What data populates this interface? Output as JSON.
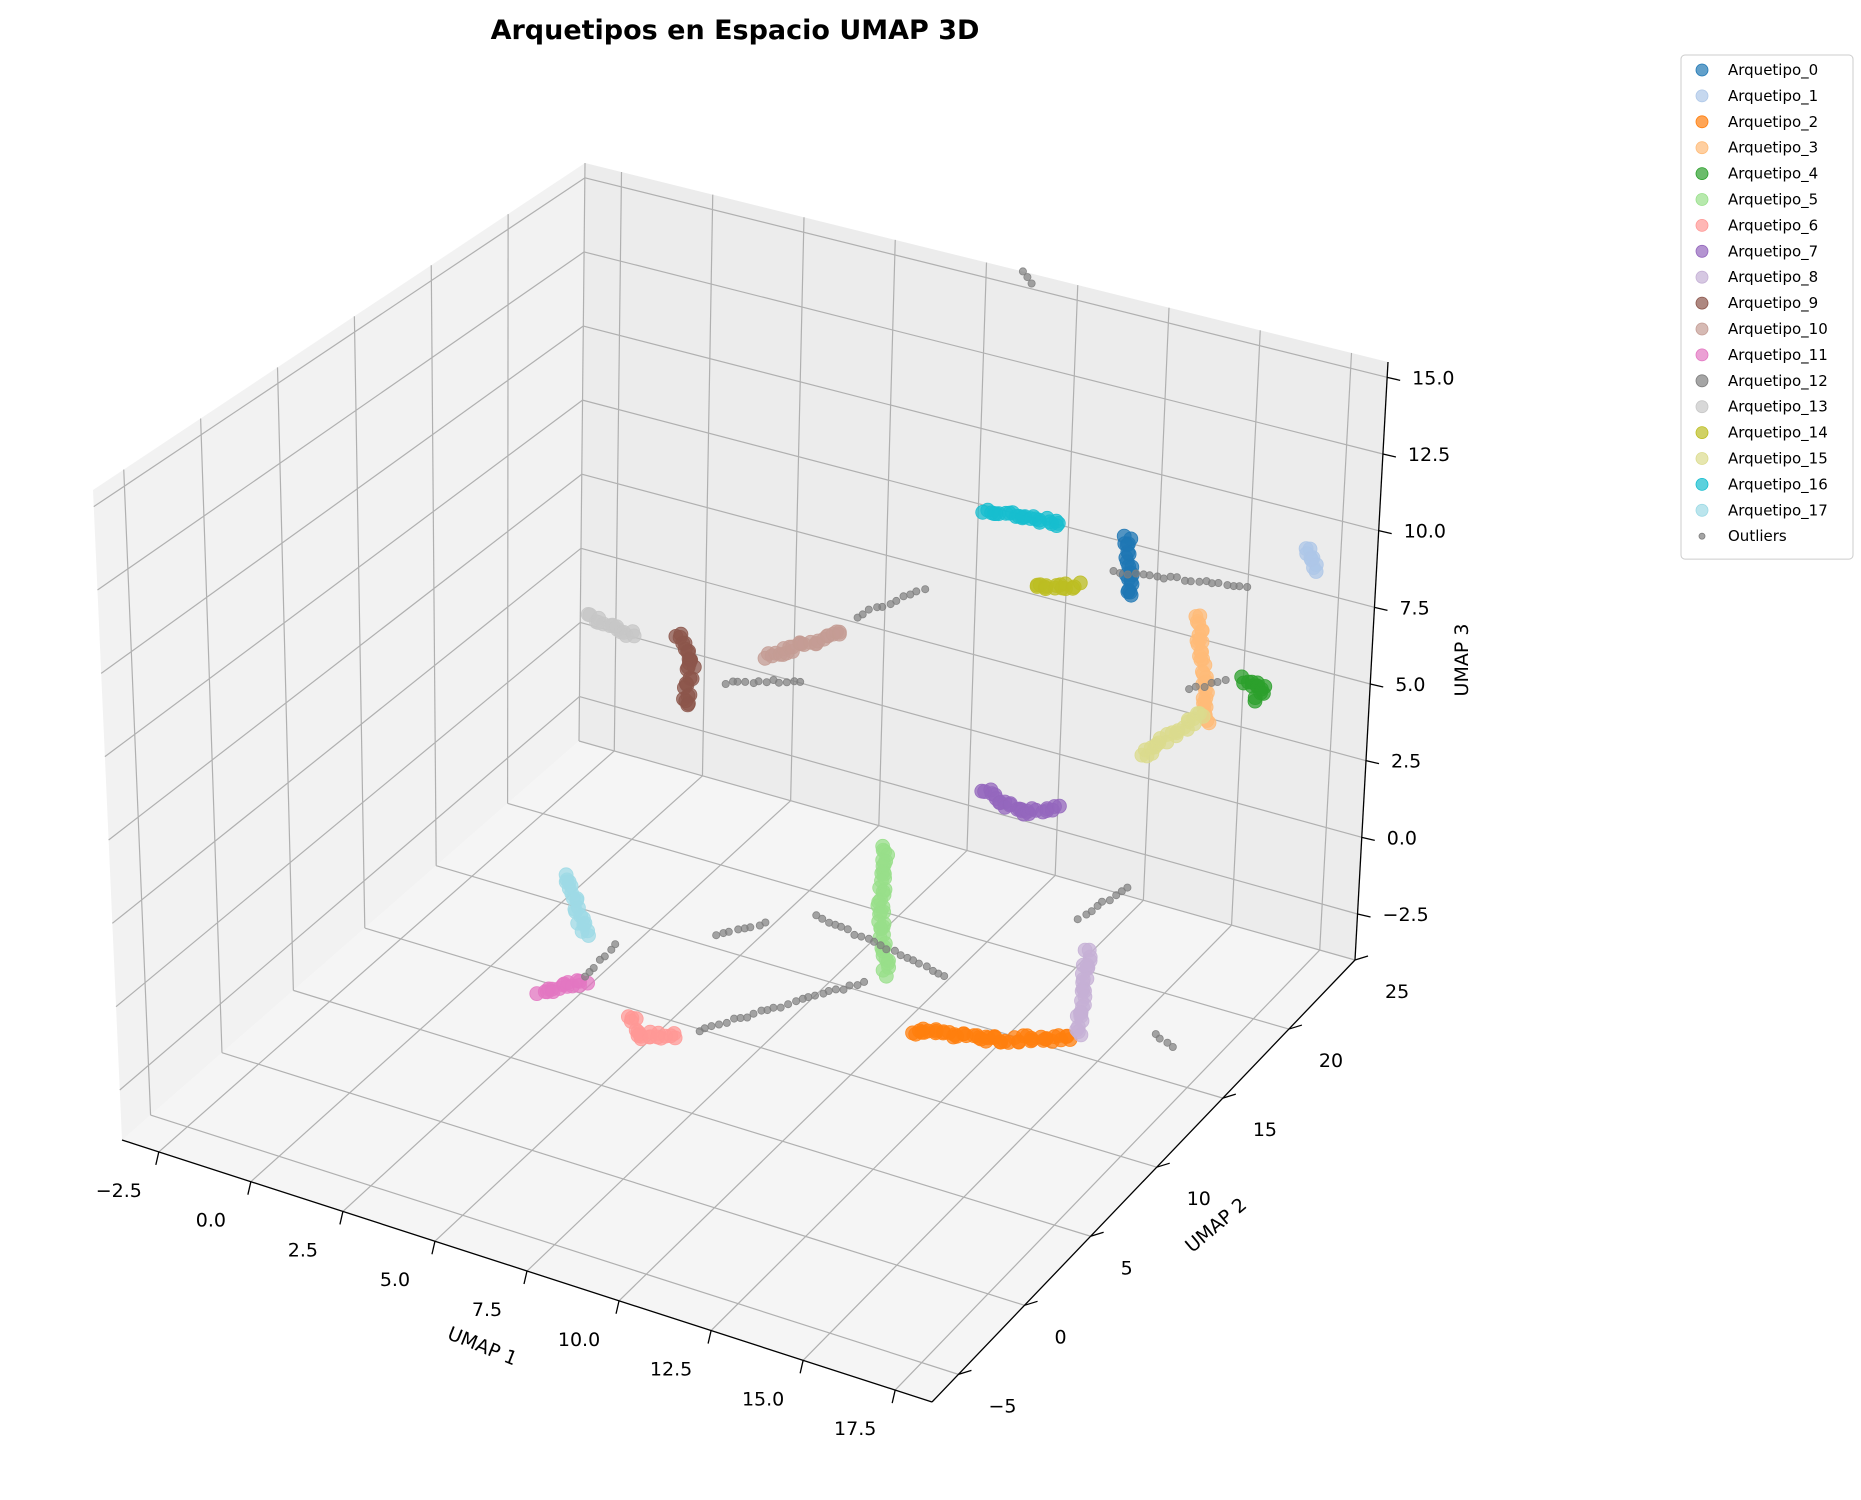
{
  "chart_data": {
    "type": "scatter",
    "projection": "3d",
    "title": "Arquetipos en Espacio UMAP 3D",
    "xlabel": "UMAP 1",
    "ylabel": "UMAP 2",
    "zlabel": "UMAP 3",
    "xlim": [
      -3.5,
      18.5
    ],
    "ylim": [
      -7,
      25
    ],
    "zlim": [
      -4,
      15.5
    ],
    "x_ticks": [
      "−2.5",
      "0.0",
      "2.5",
      "5.0",
      "7.5",
      "10.0",
      "12.5",
      "15.0",
      "17.5"
    ],
    "y_ticks": [
      "−5",
      "0",
      "5",
      "10",
      "15",
      "20",
      "25"
    ],
    "z_ticks": [
      "−2.5",
      "0.0",
      "2.5",
      "5.0",
      "7.5",
      "10.0",
      "12.5",
      "15.0"
    ],
    "grid": true,
    "legend_position": "outside-top-right",
    "series": [
      {
        "name": "Arquetipo_0",
        "color": "#1f77b4",
        "segments": [
          [
            [
              14.4,
              17.6,
              11.6
            ],
            [
              14.5,
              17.6,
              9.6
            ]
          ]
        ]
      },
      {
        "name": "Arquetipo_1",
        "color": "#aec7e8",
        "segments": [
          [
            [
              17.0,
              23.8,
              9.5
            ],
            [
              17.3,
              23.9,
              8.8
            ]
          ]
        ]
      },
      {
        "name": "Arquetipo_2",
        "color": "#ff7f0e",
        "segments": [
          [
            [
              12.0,
              9.0,
              -1.5
            ],
            [
              14.0,
              10.0,
              -1.5
            ],
            [
              15.5,
              11.5,
              -1.6
            ]
          ]
        ]
      },
      {
        "name": "Arquetipo_3",
        "color": "#ffbb78",
        "segments": [
          [
            [
              15.5,
              20.0,
              8.4
            ],
            [
              15.7,
              20.5,
              4.7
            ]
          ]
        ]
      },
      {
        "name": "Arquetipo_4",
        "color": "#2ca02c",
        "segments": [
          [
            [
              15.8,
              22.5,
              5.4
            ],
            [
              16.3,
              23.0,
              5.0
            ],
            [
              15.9,
              23.5,
              4.3
            ]
          ]
        ]
      },
      {
        "name": "Arquetipo_5",
        "color": "#98df8a",
        "segments": [
          [
            [
              10.3,
              11.5,
              2.8
            ],
            [
              10.2,
              11.5,
              0.7
            ],
            [
              10.4,
              11.5,
              -1.3
            ]
          ]
        ]
      },
      {
        "name": "Arquetipo_6",
        "color": "#ff9896",
        "segments": [
          [
            [
              5.5,
              5.8,
              -2.0
            ],
            [
              5.7,
              6.0,
              -2.6
            ],
            [
              6.5,
              6.5,
              -2.5
            ]
          ]
        ]
      },
      {
        "name": "Arquetipo_7",
        "color": "#9467bd",
        "segments": [
          [
            [
              11.8,
              14.5,
              3.8
            ],
            [
              12.8,
              15.0,
              3.2
            ],
            [
              13.5,
              15.5,
              3.4
            ]
          ]
        ]
      },
      {
        "name": "Arquetipo_8",
        "color": "#c5b0d5",
        "segments": [
          [
            [
              15.0,
              14.0,
              0.0
            ],
            [
              14.8,
              14.0,
              -2.8
            ]
          ]
        ]
      },
      {
        "name": "Arquetipo_9",
        "color": "#8c564b",
        "segments": [
          [
            [
              3.0,
              15.5,
              5.5
            ],
            [
              3.4,
              15.5,
              4.8
            ],
            [
              3.3,
              15.3,
              3.3
            ]
          ]
        ]
      },
      {
        "name": "Arquetipo_10",
        "color": "#c49c94",
        "segments": [
          [
            [
              5.0,
              16.5,
              5.0
            ],
            [
              6.7,
              17.5,
              6.0
            ]
          ]
        ]
      },
      {
        "name": "Arquetipo_11",
        "color": "#e377c2",
        "segments": [
          [
            [
              3.5,
              4.5,
              -1.4
            ],
            [
              4.6,
              5.0,
              -0.9
            ]
          ]
        ]
      },
      {
        "name": "Arquetipo_12",
        "color": "#7f7f7f",
        "segments": [
          [
            [
              14.0,
              17.8,
              10.2
            ],
            [
              17.0,
              19.5,
              10.0
            ]
          ],
          [
            [
              4.2,
              15.8,
              4.2
            ],
            [
              6.0,
              16.5,
              4.6
            ]
          ],
          [
            [
              7.0,
              17.8,
              6.5
            ],
            [
              8.5,
              18.7,
              7.5
            ]
          ],
          [
            [
              4.5,
              5.2,
              -0.9
            ],
            [
              5.2,
              5.5,
              0.3
            ]
          ],
          [
            [
              7.0,
              8.0,
              0.2
            ],
            [
              8.2,
              8.5,
              0.8
            ]
          ],
          [
            [
              7.0,
              6.8,
              -2.3
            ],
            [
              10.5,
              9.5,
              -0.7
            ]
          ],
          [
            [
              9.0,
              10.0,
              0.7
            ],
            [
              12.0,
              11.5,
              -0.8
            ]
          ],
          [
            [
              15.5,
              15.5,
              1.5
            ],
            [
              14.8,
              13.8,
              1.0
            ]
          ],
          [
            [
              17.3,
              13.0,
              -1.5
            ],
            [
              17.7,
              13.1,
              -1.8
            ]
          ],
          [
            [
              8.5,
              25.0,
              15.5
            ],
            [
              8.7,
              25.2,
              15.1
            ]
          ],
          [
            [
              15.0,
              21.0,
              5.4
            ],
            [
              15.4,
              22.6,
              5.2
            ]
          ]
        ]
      },
      {
        "name": "Arquetipo_13",
        "color": "#c7c7c7",
        "segments": [
          [
            [
              1.0,
              14.5,
              5.8
            ],
            [
              2.2,
              14.5,
              5.6
            ]
          ]
        ]
      },
      {
        "name": "Arquetipo_14",
        "color": "#bcbd22",
        "segments": [
          [
            [
              12.5,
              16.0,
              10.0
            ],
            [
              13.5,
              16.5,
              10.1
            ]
          ]
        ]
      },
      {
        "name": "Arquetipo_15",
        "color": "#dbdb8d",
        "segments": [
          [
            [
              14.2,
              19.8,
              3.5
            ],
            [
              15.2,
              21.5,
              4.5
            ]
          ]
        ]
      },
      {
        "name": "Arquetipo_16",
        "color": "#17becf",
        "segments": [
          [
            [
              11.5,
              15.0,
              12.5
            ],
            [
              13.2,
              16.0,
              12.2
            ]
          ]
        ]
      },
      {
        "name": "Arquetipo_17",
        "color": "#9edae5",
        "segments": [
          [
            [
              4.3,
              4.5,
              2.5
            ],
            [
              4.6,
              5.0,
              0.5
            ]
          ]
        ]
      },
      {
        "name": "Outliers",
        "color": "#7f7f7f",
        "segments": []
      }
    ]
  }
}
